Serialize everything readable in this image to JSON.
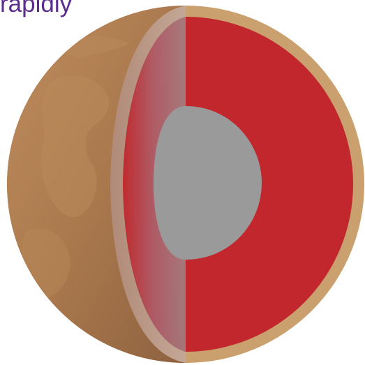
{
  "caption": {
    "text": "rapidly",
    "color": "#5b2d8e"
  },
  "planet": {
    "layers": [
      {
        "name": "crust",
        "color": "#c9a06e"
      },
      {
        "name": "mantle",
        "color": "#c1272d"
      },
      {
        "name": "core",
        "color": "#9a9a9a"
      }
    ],
    "surface_color": "#a8774c",
    "glass_overlay_color": "#b9a8a2"
  }
}
